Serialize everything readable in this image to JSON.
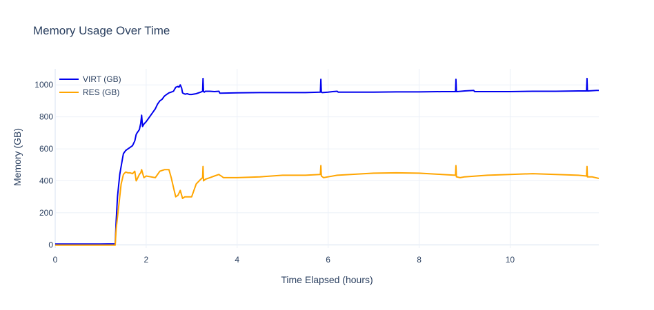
{
  "chart_data": {
    "type": "line",
    "title": "Memory Usage Over Time",
    "xlabel": "Time Elapsed (hours)",
    "ylabel": "Memory (GB)",
    "xlim": [
      0,
      11.95
    ],
    "ylim": [
      -20,
      1100
    ],
    "xticks": [
      0,
      2,
      4,
      6,
      8,
      10
    ],
    "xtick_labels": [
      "0",
      "2",
      "4",
      "6",
      "8",
      "10"
    ],
    "yticks": [
      0,
      200,
      400,
      600,
      800,
      1000
    ],
    "ytick_labels": [
      "0",
      "200",
      "400",
      "600",
      "800",
      "1000"
    ],
    "grid": true,
    "legend_position": "top-left",
    "series": [
      {
        "name": "VIRT (GB)",
        "color": "#0000ee",
        "x": [
          0,
          0.5,
          1.0,
          1.32,
          1.34,
          1.37,
          1.42,
          1.48,
          1.5,
          1.55,
          1.6,
          1.65,
          1.7,
          1.75,
          1.78,
          1.8,
          1.85,
          1.88,
          1.9,
          1.92,
          1.95,
          2.0,
          2.05,
          2.1,
          2.15,
          2.2,
          2.25,
          2.3,
          2.35,
          2.4,
          2.45,
          2.5,
          2.55,
          2.6,
          2.65,
          2.7,
          2.72,
          2.75,
          2.78,
          2.8,
          2.83,
          2.86,
          2.9,
          2.95,
          3.0,
          3.1,
          3.2,
          3.24,
          3.25,
          3.26,
          3.28,
          3.3,
          3.4,
          3.5,
          3.6,
          3.62,
          3.64,
          4.0,
          4.5,
          5.0,
          5.5,
          5.83,
          5.84,
          5.85,
          5.87,
          6.0,
          6.1,
          6.2,
          6.22,
          6.5,
          7.0,
          7.5,
          8.0,
          8.5,
          8.8,
          8.81,
          8.82,
          8.84,
          9.0,
          9.2,
          9.22,
          9.5,
          10.0,
          10.5,
          11.0,
          11.5,
          11.68,
          11.69,
          11.7,
          11.72,
          11.9,
          11.95
        ],
        "values": [
          5,
          5,
          5,
          6,
          150,
          300,
          440,
          540,
          570,
          590,
          600,
          610,
          620,
          650,
          690,
          700,
          720,
          760,
          810,
          740,
          755,
          770,
          790,
          810,
          830,
          850,
          880,
          900,
          910,
          930,
          940,
          950,
          955,
          960,
          985,
          990,
          985,
          1000,
          980,
          950,
          945,
          942,
          945,
          940,
          940,
          945,
          955,
          960,
          1040,
          958,
          955,
          960,
          960,
          958,
          960,
          948,
          948,
          950,
          952,
          952,
          952,
          955,
          1035,
          955,
          952,
          955,
          958,
          960,
          955,
          955,
          955,
          956,
          956,
          958,
          958,
          1035,
          958,
          958,
          962,
          965,
          958,
          958,
          958,
          960,
          960,
          962,
          962,
          1040,
          962,
          962,
          965,
          965
        ]
      },
      {
        "name": "RES (GB)",
        "color": "#ffa500",
        "x": [
          0,
          0.5,
          1.0,
          1.32,
          1.34,
          1.4,
          1.45,
          1.5,
          1.55,
          1.6,
          1.65,
          1.7,
          1.75,
          1.78,
          1.8,
          1.85,
          1.88,
          1.9,
          1.95,
          2.0,
          2.1,
          2.2,
          2.3,
          2.4,
          2.5,
          2.55,
          2.6,
          2.65,
          2.7,
          2.75,
          2.8,
          2.85,
          2.9,
          3.0,
          3.1,
          3.2,
          3.24,
          3.25,
          3.26,
          3.3,
          3.4,
          3.5,
          3.6,
          3.62,
          3.65,
          3.7,
          4.0,
          4.5,
          5.0,
          5.5,
          5.83,
          5.84,
          5.85,
          5.9,
          6.0,
          6.2,
          6.5,
          7.0,
          7.5,
          8.0,
          8.5,
          8.8,
          8.81,
          8.82,
          8.9,
          9.0,
          9.5,
          10.0,
          10.5,
          11.0,
          11.5,
          11.68,
          11.69,
          11.7,
          11.8,
          11.95
        ],
        "values": [
          -2,
          -2,
          -2,
          -2,
          100,
          250,
          380,
          440,
          455,
          450,
          450,
          445,
          460,
          400,
          410,
          440,
          450,
          470,
          420,
          430,
          425,
          420,
          460,
          470,
          470,
          420,
          360,
          300,
          310,
          340,
          290,
          300,
          300,
          300,
          380,
          410,
          420,
          490,
          400,
          410,
          420,
          430,
          440,
          435,
          430,
          420,
          420,
          425,
          435,
          435,
          440,
          495,
          430,
          420,
          425,
          435,
          440,
          448,
          450,
          448,
          440,
          435,
          495,
          425,
          420,
          425,
          435,
          440,
          445,
          440,
          435,
          430,
          490,
          425,
          425,
          415
        ]
      }
    ]
  }
}
